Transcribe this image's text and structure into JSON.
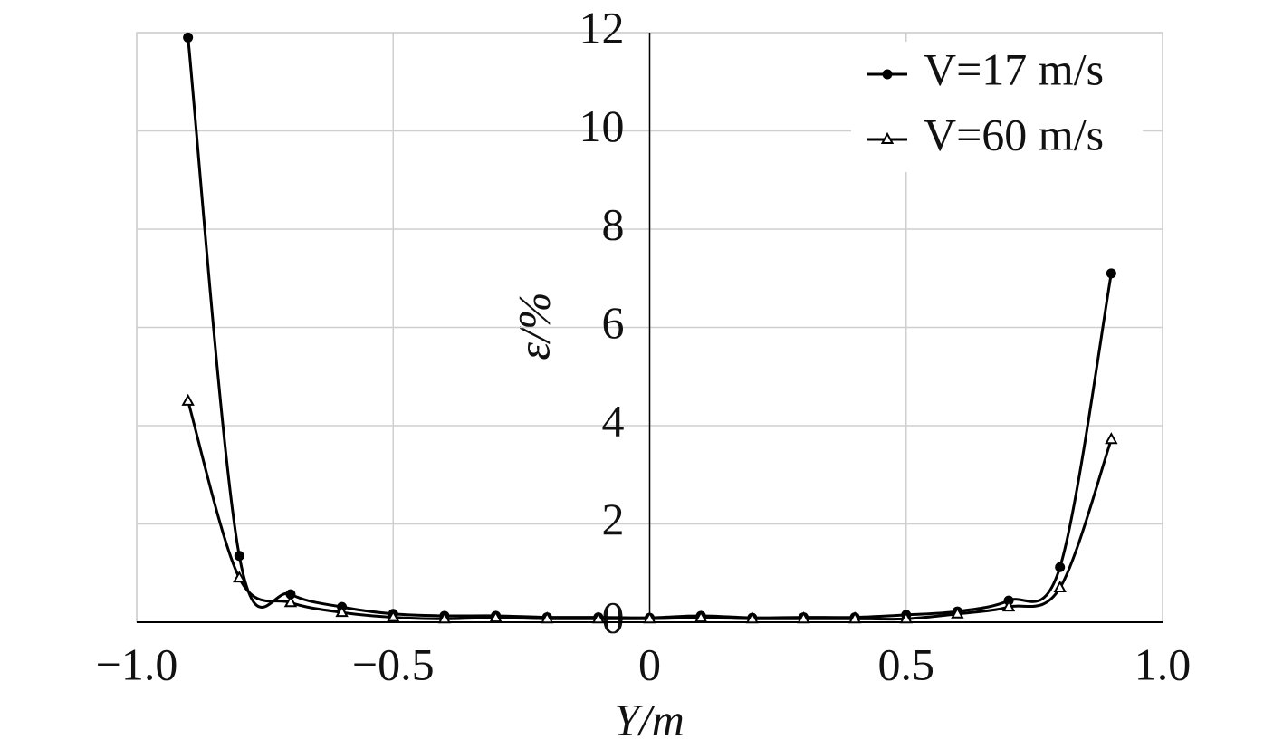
{
  "chart_data": {
    "type": "line",
    "x_label": "Y/m",
    "y_label": "ε/%",
    "x": [
      -0.9,
      -0.8,
      -0.7,
      -0.6,
      -0.5,
      -0.4,
      -0.3,
      -0.2,
      -0.1,
      0,
      0.1,
      0.2,
      0.3,
      0.4,
      0.5,
      0.6,
      0.7,
      0.8,
      0.9
    ],
    "series": [
      {
        "name": "V=17 m/s",
        "color": "#000000",
        "marker": "circle",
        "values": [
          11.9,
          1.35,
          0.57,
          0.31,
          0.17,
          0.13,
          0.13,
          0.1,
          0.1,
          0.09,
          0.13,
          0.09,
          0.1,
          0.1,
          0.15,
          0.22,
          0.44,
          1.12,
          7.1
        ]
      },
      {
        "name": "V=60 m/s",
        "color": "#000000",
        "marker": "triangle",
        "values": [
          4.5,
          0.9,
          0.4,
          0.2,
          0.1,
          0.07,
          0.09,
          0.07,
          0.07,
          0.07,
          0.09,
          0.07,
          0.07,
          0.07,
          0.07,
          0.17,
          0.31,
          0.7,
          3.72
        ]
      }
    ],
    "xlim": [
      -1.0,
      1.0
    ],
    "xticks": [
      {
        "value": -1.0,
        "label": "−1.0"
      },
      {
        "value": -0.5,
        "label": "−0.5"
      },
      0,
      {
        "value": 0.5,
        "label": "0.5"
      },
      {
        "value": 1.0,
        "label": "1.0"
      }
    ],
    "ylim": [
      0,
      12
    ],
    "yticks": [
      0,
      2,
      4,
      6,
      8,
      10,
      12
    ],
    "grid": true,
    "legend": "upper right"
  }
}
